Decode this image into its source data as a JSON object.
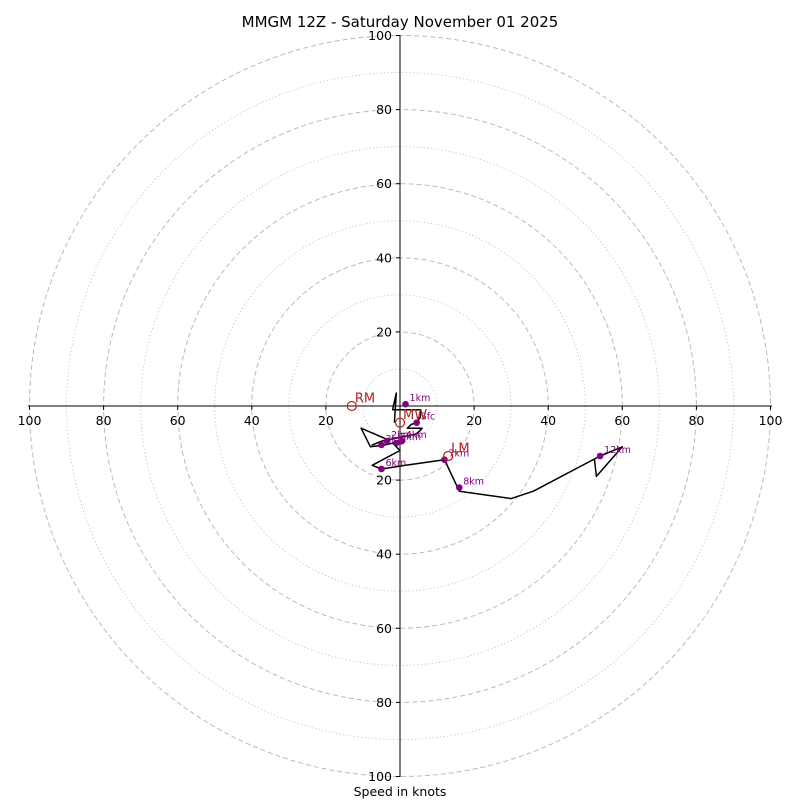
{
  "chart_data": {
    "type": "hodograph",
    "title": "MMGM 12Z - Saturday November 01 2025",
    "xlabel": "Speed in knots",
    "units": "knots",
    "range": [
      -100,
      100
    ],
    "ring_major_values": [
      20,
      40,
      60,
      80,
      100
    ],
    "ring_minor_values": [
      10,
      30,
      50,
      70,
      90
    ],
    "x_tick_labels": [
      "100",
      "80",
      "60",
      "40",
      "20",
      "20",
      "40",
      "60",
      "80",
      "100"
    ],
    "y_tick_labels_up": [
      "20",
      "40",
      "60",
      "80",
      "100"
    ],
    "y_tick_labels_down": [
      "20",
      "40",
      "60",
      "80",
      "100"
    ],
    "colors": {
      "trace": "#000000",
      "height_points": "#800080",
      "motion": "#b22222",
      "ring": "#bbbbbb",
      "axis": "#000000"
    },
    "trace_uv": [
      [
        -1.5,
        -4.5
      ],
      [
        -1.0,
        3.5
      ],
      [
        -2.0,
        -1.0
      ],
      [
        5.5,
        -1.0
      ],
      [
        5.5,
        -3.0
      ],
      [
        4.5,
        -4.5
      ],
      [
        3.0,
        -5.0
      ],
      [
        2.0,
        -6.0
      ],
      [
        6.0,
        -6.0
      ],
      [
        4.5,
        -7.5
      ],
      [
        -5.0,
        -9.5
      ],
      [
        -7.5,
        -10.5
      ],
      [
        -3.5,
        -9.0
      ],
      [
        -10.5,
        -6.0
      ],
      [
        -8.0,
        -11.0
      ],
      [
        -4.0,
        -10.5
      ],
      [
        -2.0,
        -10.0
      ],
      [
        0.0,
        -12.0
      ],
      [
        -7.5,
        -16.0
      ],
      [
        -5.0,
        -17.0
      ],
      [
        1.5,
        -16.0
      ],
      [
        12.0,
        -14.5
      ],
      [
        16.0,
        -23.0
      ],
      [
        30.0,
        -25.0
      ],
      [
        36.0,
        -23.0
      ],
      [
        54.0,
        -13.5
      ],
      [
        60.0,
        -11.0
      ],
      [
        53.0,
        -19.0
      ],
      [
        52.5,
        -14.5
      ]
    ],
    "height_points": [
      {
        "label": "Sfc",
        "u": 4.5,
        "v": -4.5
      },
      {
        "label": "1km",
        "u": 1.5,
        "v": 0.5
      },
      {
        "label": "2km",
        "u": -3.5,
        "v": -9.5
      },
      {
        "label": "3km",
        "u": -5.0,
        "v": -10.5
      },
      {
        "label": "4km",
        "u": 0.5,
        "v": -9.5
      },
      {
        "label": "5km",
        "u": -1.0,
        "v": -10.0
      },
      {
        "label": "6km",
        "u": -5.0,
        "v": -17.0
      },
      {
        "label": "7km",
        "u": 12.0,
        "v": -14.5
      },
      {
        "label": "8km",
        "u": 16.0,
        "v": -22.0
      },
      {
        "label": "12km",
        "u": 54.0,
        "v": -13.5
      }
    ],
    "storm_motion": [
      {
        "label": "RM",
        "u": -13.0,
        "v": 0.0
      },
      {
        "label": "LM",
        "u": 13.0,
        "v": -13.5
      },
      {
        "label": "MW",
        "u": 0.0,
        "v": -4.5
      }
    ]
  }
}
